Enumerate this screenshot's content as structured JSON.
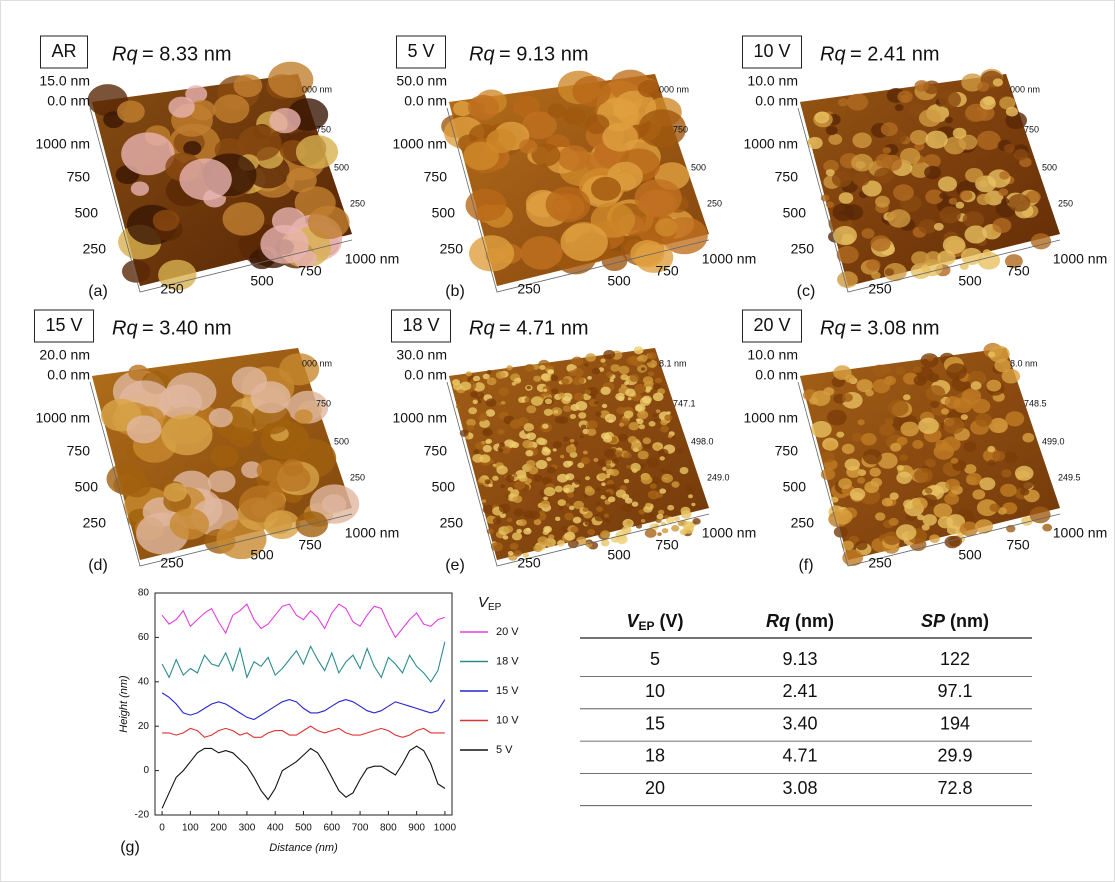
{
  "panels": [
    {
      "letter": "(a)",
      "sample": "AR",
      "rq_symbol": "Rq",
      "rq_value": "= 8.33 nm",
      "z_max": "15.0 nm",
      "z_min": "0.0 nm",
      "y_labels": [
        "1000 nm",
        "750",
        "500",
        "250"
      ],
      "x_labels": [
        "250",
        "500",
        "750",
        "1000 nm"
      ],
      "right_labels": [
        "000 nm",
        "750",
        "500",
        "250"
      ]
    },
    {
      "letter": "(b)",
      "sample": "5 V",
      "rq_symbol": "Rq",
      "rq_value": "= 9.13 nm",
      "z_max": "50.0 nm",
      "z_min": "0.0 nm",
      "y_labels": [
        "1000 nm",
        "750",
        "500",
        "250"
      ],
      "x_labels": [
        "250",
        "500",
        "750",
        "1000 nm"
      ],
      "right_labels": [
        "000 nm",
        "750",
        "500",
        "250"
      ]
    },
    {
      "letter": "(c)",
      "sample": "10 V",
      "rq_symbol": "Rq",
      "rq_value": "= 2.41 nm",
      "z_max": "10.0 nm",
      "z_min": "0.0 nm",
      "y_labels": [
        "1000 nm",
        "750",
        "500",
        "250"
      ],
      "x_labels": [
        "250",
        "500",
        "750",
        "1000 nm"
      ],
      "right_labels": [
        "000 nm",
        "750",
        "500",
        "250"
      ]
    },
    {
      "letter": "(d)",
      "sample": "15 V",
      "rq_symbol": "Rq",
      "rq_value": "= 3.40 nm",
      "z_max": "20.0 nm",
      "z_min": "0.0 nm",
      "y_labels": [
        "1000 nm",
        "750",
        "500",
        "250"
      ],
      "x_labels": [
        "250",
        "500",
        "750",
        "1000 nm"
      ],
      "right_labels": [
        "000 nm",
        "750",
        "500",
        "250"
      ]
    },
    {
      "letter": "(e)",
      "sample": "18 V",
      "rq_symbol": "Rq",
      "rq_value": "= 4.71 nm",
      "z_max": "30.0 nm",
      "z_min": "0.0 nm",
      "y_labels": [
        "1000 nm",
        "750",
        "500",
        "250"
      ],
      "x_labels": [
        "250",
        "500",
        "750",
        "1000 nm"
      ],
      "right_labels": [
        "8.1 nm",
        "747.1",
        "498.0",
        "249.0"
      ]
    },
    {
      "letter": "(f)",
      "sample": "20 V",
      "rq_symbol": "Rq",
      "rq_value": "= 3.08 nm",
      "z_max": "10.0 nm",
      "z_min": "0.0 nm",
      "y_labels": [
        "1000 nm",
        "750",
        "500",
        "250"
      ],
      "x_labels": [
        "250",
        "500",
        "750",
        "1000 nm"
      ],
      "right_labels": [
        "8.0 nm",
        "748.5",
        "499.0",
        "249.5"
      ]
    }
  ],
  "chart_data": {
    "type": "line",
    "letter": "(g)",
    "x_label": "Distance (nm)",
    "y_label": "Height (nm)",
    "legend_title": "V",
    "legend_title_sub": "EP",
    "x": [
      0,
      25,
      50,
      75,
      100,
      125,
      150,
      175,
      200,
      225,
      250,
      275,
      300,
      325,
      350,
      375,
      400,
      425,
      450,
      475,
      500,
      525,
      550,
      575,
      600,
      625,
      650,
      675,
      700,
      725,
      750,
      775,
      800,
      825,
      850,
      875,
      900,
      925,
      950,
      975,
      1000
    ],
    "xlim": [
      -25,
      1025
    ],
    "xticks": [
      0,
      100,
      200,
      300,
      400,
      500,
      600,
      700,
      800,
      900,
      1000
    ],
    "ylim": [
      -20,
      80
    ],
    "yticks": [
      -20,
      0,
      20,
      40,
      60,
      80
    ],
    "series": [
      {
        "name": "20 V",
        "color": "#e23fe0",
        "values": [
          70,
          66,
          68,
          72,
          65,
          68,
          71,
          73,
          67,
          62,
          70,
          72,
          75,
          68,
          64,
          66,
          70,
          74,
          75,
          70,
          68,
          72,
          69,
          64,
          71,
          75,
          73,
          67,
          65,
          70,
          74,
          73,
          66,
          60,
          64,
          68,
          71,
          66,
          65,
          68,
          69
        ]
      },
      {
        "name": "18 V",
        "color": "#2b8c8c",
        "values": [
          48,
          42,
          50,
          43,
          46,
          44,
          52,
          48,
          47,
          53,
          45,
          55,
          42,
          49,
          47,
          51,
          43,
          46,
          50,
          54,
          48,
          56,
          50,
          45,
          53,
          44,
          49,
          52,
          46,
          55,
          47,
          42,
          51,
          48,
          44,
          52,
          47,
          44,
          40,
          45,
          58
        ]
      },
      {
        "name": "15 V",
        "color": "#2626d4",
        "values": [
          35,
          33,
          30,
          26,
          25,
          26,
          28,
          30,
          31,
          30,
          28,
          26,
          24,
          23,
          25,
          27,
          29,
          31,
          32,
          31,
          28,
          26,
          26,
          27,
          29,
          31,
          32,
          31,
          29,
          27,
          26,
          27,
          29,
          31,
          30,
          29,
          28,
          27,
          26,
          27,
          32
        ]
      },
      {
        "name": "10 V",
        "color": "#e03232",
        "values": [
          17,
          17,
          16,
          17,
          19,
          18,
          15,
          16,
          18,
          19,
          18,
          16,
          17,
          15,
          15,
          17,
          18,
          18,
          16,
          16,
          18,
          20,
          18,
          17,
          18,
          19,
          17,
          16,
          16,
          17,
          18,
          19,
          18,
          16,
          15,
          16,
          18,
          19,
          17,
          17,
          17
        ]
      },
      {
        "name": "5 V",
        "color": "#111111",
        "values": [
          -17,
          -10,
          -3,
          0,
          4,
          8,
          10,
          10,
          8,
          9,
          8,
          5,
          2,
          -3,
          -9,
          -13,
          -8,
          0,
          2,
          4,
          7,
          10,
          8,
          3,
          -3,
          -9,
          -12,
          -10,
          -4,
          1,
          2,
          2,
          0,
          -2,
          3,
          9,
          11,
          9,
          3,
          -6,
          -8
        ]
      }
    ]
  },
  "table": {
    "header": [
      {
        "symbol": "V",
        "sub": "EP",
        "unit": " (V)"
      },
      {
        "symbol": "Rq",
        "unit": " (nm)"
      },
      {
        "symbol": "SP",
        "unit": " (nm)"
      }
    ],
    "rows": [
      [
        "5",
        "9.13",
        "122"
      ],
      [
        "10",
        "2.41",
        "97.1"
      ],
      [
        "15",
        "3.40",
        "194"
      ],
      [
        "18",
        "4.71",
        "29.9"
      ],
      [
        "20",
        "3.08",
        "72.8"
      ]
    ]
  }
}
